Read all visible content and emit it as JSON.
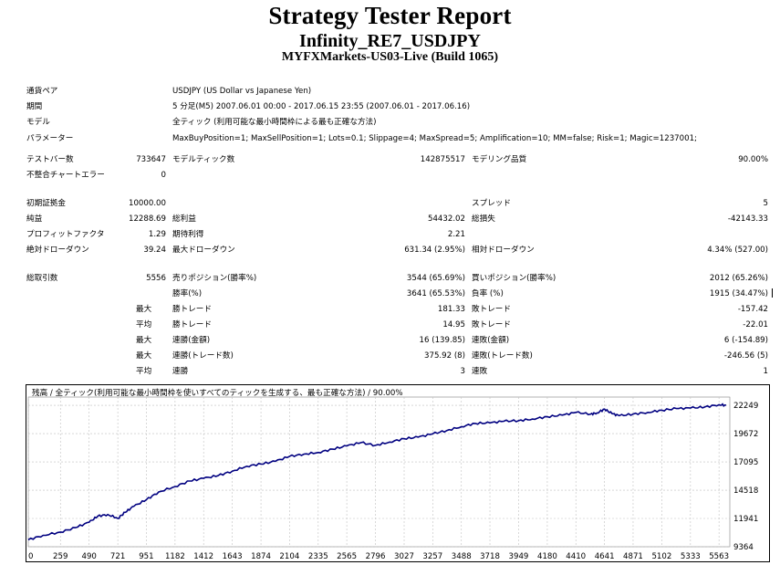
{
  "header": {
    "title": "Strategy Tester Report",
    "subtitle": "Infinity_RE7_USDJPY",
    "broker": "MYFXMarkets-US03-Live (Build 1065)"
  },
  "settings": {
    "symbol_label": "通貨ペア",
    "symbol_value": "USDJPY (US Dollar vs Japanese Yen)",
    "period_label": "期間",
    "period_value": "5 分足(M5) 2007.06.01 00:00 - 2017.06.15 23:55 (2007.06.01 - 2017.06.16)",
    "model_label": "モデル",
    "model_value": "全ティック (利用可能な最小時間枠による最も正確な方法)",
    "params_label": "パラメーター",
    "params_value": "MaxBuyPosition=1; MaxSellPosition=1; Lots=0.1; Slippage=4; MaxSpread=5; Amplification=10; MM=false; Risk=1; Magic=1237001;"
  },
  "stats": {
    "bars_label": "テストバー数",
    "bars_value": "733647",
    "ticks_label": "モデルティック数",
    "ticks_value": "142875517",
    "quality_label": "モデリング品質",
    "quality_value": "90.00%",
    "errors_label": "不整合チャートエラー",
    "errors_value": "0",
    "deposit_label": "初期証拠金",
    "deposit_value": "10000.00",
    "spread_label": "スプレッド",
    "spread_value": "5",
    "netprofit_label": "純益",
    "netprofit_value": "12288.69",
    "grossprofit_label": "総利益",
    "grossprofit_value": "54432.02",
    "grossloss_label": "総損失",
    "grossloss_value": "-42143.33",
    "pf_label": "プロフィットファクタ",
    "pf_value": "1.29",
    "expected_label": "期待利得",
    "expected_value": "2.21",
    "absdd_label": "絶対ドローダウン",
    "absdd_value": "39.24",
    "maxdd_label": "最大ドローダウン",
    "maxdd_value": "631.34 (2.95%)",
    "reldd_label": "相対ドローダウン",
    "reldd_value": "4.34% (527.00)",
    "trades_label": "総取引数",
    "trades_value": "5556",
    "short_label": "売りポジション(勝率%)",
    "short_value": "3544 (65.69%)",
    "long_label": "買いポジション(勝率%)",
    "long_value": "2012 (65.26%)",
    "winrate_label": "勝率(%)",
    "winrate_value": "3641 (65.53%)",
    "lossrate_label": "負率 (%)",
    "lossrate_value": "1915 (34.47%)",
    "max1_label": "最大",
    "largest_win_label": "勝トレード",
    "largest_win_value": "181.33",
    "largest_loss_label": "敗トレード",
    "largest_loss_value": "-157.42",
    "avg1_label": "平均",
    "avg_win_label": "勝トレード",
    "avg_win_value": "14.95",
    "avg_loss_label": "敗トレード",
    "avg_loss_value": "-22.01",
    "max2_label": "最大",
    "maxconswins_label": "連勝(金額)",
    "maxconswins_value": "16 (139.85)",
    "maxconslosses_label": "連敗(金額)",
    "maxconslosses_value": "6 (-154.89)",
    "max3_label": "最大",
    "maxconsprofit_label": "連勝(トレード数)",
    "maxconsprofit_value": "375.92 (8)",
    "maxconsloss_label": "連敗(トレード数)",
    "maxconsloss_value": "-246.56 (5)",
    "avg2_label": "平均",
    "avgconswins_label": "連勝",
    "avgconswins_value": "3",
    "avgconslosses_label": "連敗",
    "avgconslosses_value": "1"
  },
  "chart_caption": "残高 / 全ティック(利用可能な最小時間枠を使いすべてのティックを生成する、最も正確な方法) / 90.00%",
  "chart_data": {
    "type": "line",
    "title": "残高 / 全ティック(利用可能な最小時間枠を使いすべてのティックを生成する、最も正確な方法) / 90.00%",
    "xlabel": "",
    "ylabel": "",
    "xlim": [
      0,
      5650
    ],
    "ylim": [
      9364,
      23000
    ],
    "x_ticks": [
      0,
      259,
      490,
      721,
      951,
      1182,
      1412,
      1643,
      1874,
      2104,
      2335,
      2565,
      2796,
      3027,
      3257,
      3488,
      3718,
      3949,
      4180,
      4410,
      4641,
      4871,
      5102,
      5333,
      5563
    ],
    "y_ticks": [
      22249,
      19672,
      17095,
      14518,
      11941,
      9364
    ],
    "grid": true,
    "line_color": "#000080",
    "series": [
      {
        "x": [
          0,
          120,
          259,
          380,
          490,
          560,
          640,
          721,
          780,
          850,
          951,
          1050,
          1182,
          1300,
          1412,
          1530,
          1643,
          1760,
          1874,
          1990,
          2104,
          2220,
          2335,
          2450,
          2565,
          2680,
          2796,
          2910,
          3027,
          3140,
          3257,
          3370,
          3488,
          3600,
          3718,
          3830,
          3949,
          4060,
          4180,
          4300,
          4410,
          4530,
          4580,
          4641,
          4700,
          4760,
          4871,
          4990,
          5102,
          5220,
          5333,
          5450,
          5563,
          5620
        ],
        "y": [
          10000,
          10400,
          10700,
          11100,
          11600,
          12150,
          12300,
          11950,
          12500,
          13050,
          13650,
          14350,
          14850,
          15350,
          15600,
          15850,
          16250,
          16700,
          16900,
          17150,
          17600,
          17800,
          17950,
          18250,
          18550,
          18850,
          18600,
          18900,
          19200,
          19350,
          19650,
          19950,
          20300,
          20600,
          20650,
          20800,
          20850,
          21000,
          21200,
          21350,
          21600,
          21450,
          21550,
          21900,
          21500,
          21300,
          21450,
          21600,
          21800,
          21950,
          22000,
          22100,
          22300,
          22249
        ]
      }
    ]
  }
}
